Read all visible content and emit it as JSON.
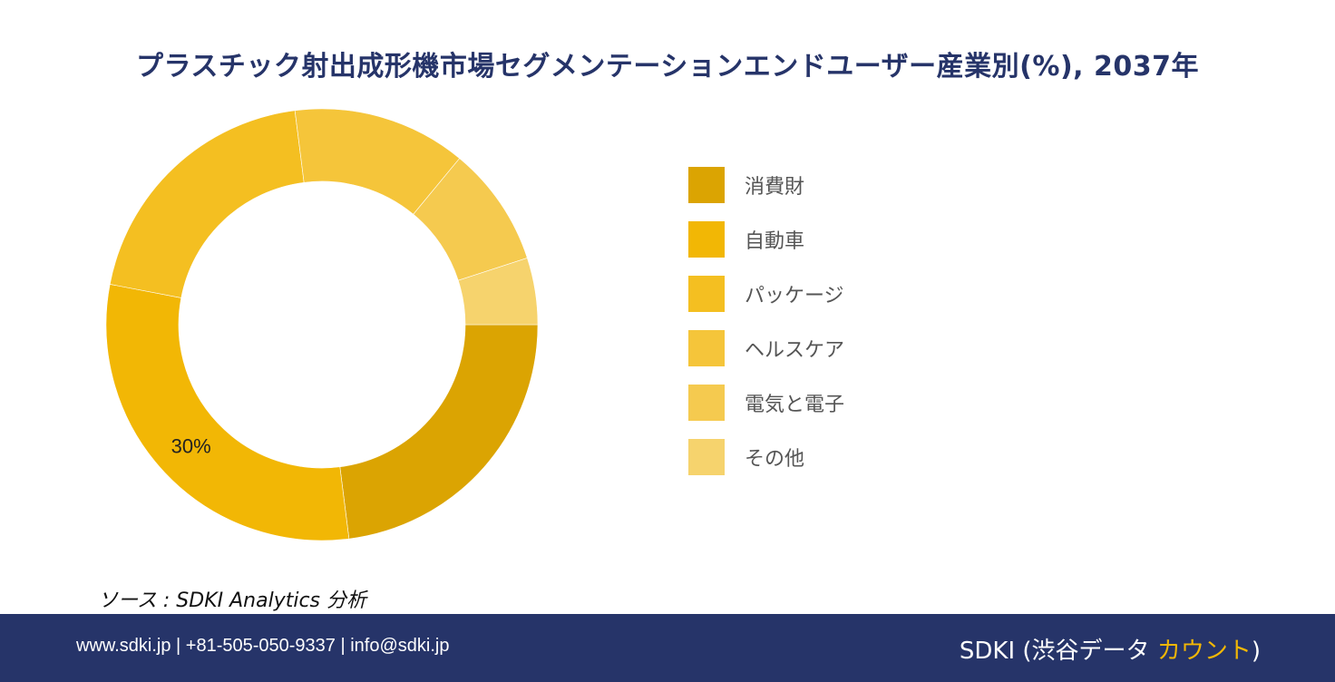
{
  "title": "プラスチック射出成形機市場セグメンテーションエンドユーザー産業別(%), 2037年",
  "chart_data": {
    "type": "pie",
    "donut": true,
    "title": "プラスチック射出成形機市場セグメンテーションエンドユーザー産業別(%), 2037年",
    "legend_position": "right",
    "slices": [
      {
        "name": "消費財",
        "value": 23,
        "color": "#dba402"
      },
      {
        "name": "自動車",
        "value": 30,
        "color": "#f2b705",
        "label": "30%"
      },
      {
        "name": "パッケージ",
        "value": 20,
        "color": "#f4bf21"
      },
      {
        "name": "ヘルスケア",
        "value": 13,
        "color": "#f5c53a"
      },
      {
        "name": "電気と電子",
        "value": 9,
        "color": "#f5ca4f"
      },
      {
        "name": "その他",
        "value": 5,
        "color": "#f6d36d"
      }
    ]
  },
  "source": "ソース : SDKI Analytics 分析",
  "footer": {
    "contact": "www.sdki.jp | +81-505-050-9337 | info@sdki.jp",
    "brand_prefix": "SDKI (渋谷データ ",
    "brand_accent": "カウント",
    "brand_suffix": ")"
  }
}
